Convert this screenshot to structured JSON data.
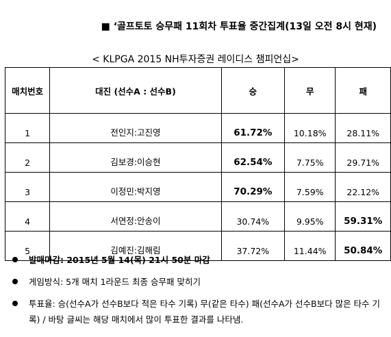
{
  "header": {
    "title": "■ ‘골프토토 승무패 11회차 투표율 중간집계(13일 오전 8시 현재)",
    "subtitle": "< KLPGA 2015 NH투자증권 레이디스 챔피언십>"
  },
  "table": {
    "columns": [
      "매치번호",
      "대진 (선수A : 선수B)",
      "승",
      "무",
      "패"
    ],
    "rows": [
      [
        "1",
        "전인지:고진영",
        "61.72%",
        "10.18%",
        "28.11%"
      ],
      [
        "2",
        "김보경:이승현",
        "62.54%",
        "7.75%",
        "29.71%"
      ],
      [
        "3",
        "이정민:박지영",
        "70.29%",
        "7.59%",
        "22.12%"
      ],
      [
        "4",
        "서연정:안송이",
        "30.74%",
        "9.95%",
        "59.31%"
      ],
      [
        "5",
        "김예진:김해림",
        "37.72%",
        "11.44%",
        "50.84%"
      ]
    ]
  },
  "notes": [
    "발매마감: 2015년 5월 14(목) 21시 50분 마감",
    "게임방식: 5개 매치 1라운드 최종 승무패 맞히기",
    "투표율: 승(선수A가 선수B보다 적은 타수 기록) 무(같은 타수) 패(선수A가 선수B보다 많은 타수 기록) / 바탕 글씨는 해당 매치에서 많이 투표한 결과를 나타냄."
  ]
}
